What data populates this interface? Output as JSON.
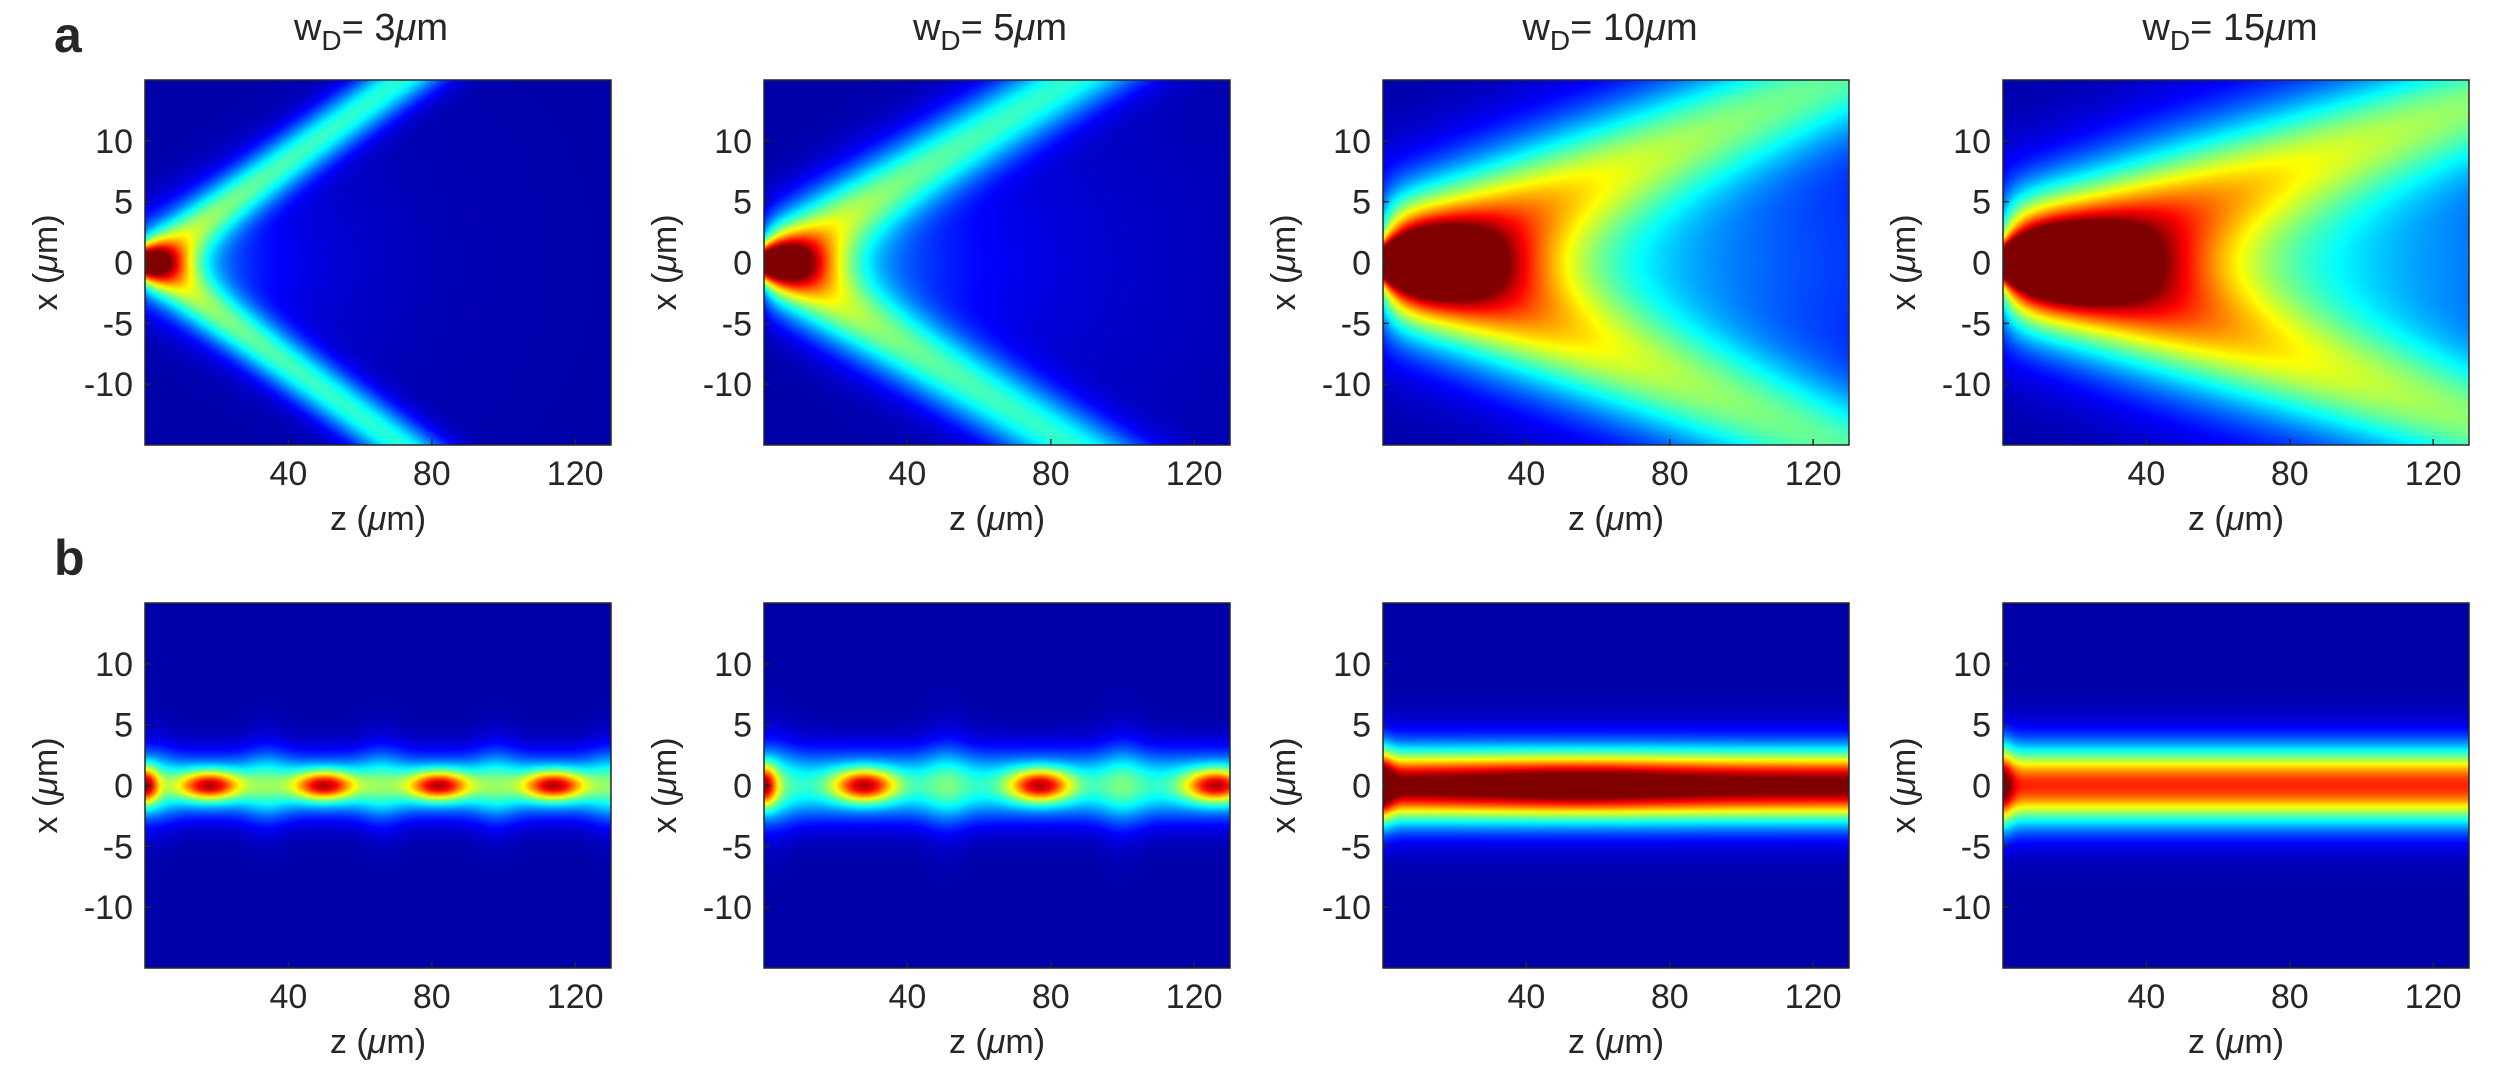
{
  "chart_data": {
    "type": "heatmap",
    "colormap": "jet",
    "panel_labels": [
      "a",
      "b"
    ],
    "xaxis": {
      "label_prefix": "z (",
      "label_unit_mu": "μ",
      "label_suffix": "m)",
      "range": [
        0,
        130
      ],
      "ticks": [
        40,
        80,
        120
      ],
      "tick_labels": [
        "40",
        "80",
        "120"
      ]
    },
    "yaxis": {
      "label_prefix": "x (",
      "label_unit_mu": "μ",
      "label_suffix": "m)",
      "range": [
        -15,
        15
      ],
      "ticks": [
        10,
        5,
        0,
        -5,
        -10
      ],
      "tick_labels": [
        "10",
        "5",
        "0",
        "-5",
        "-10"
      ]
    },
    "columns": [
      {
        "title_main": "w",
        "title_sub": "D",
        "title_rest": "= 3",
        "title_mu": "μ",
        "title_unit": "m",
        "wD_um": 3
      },
      {
        "title_main": "w",
        "title_sub": "D",
        "title_rest": "= 5",
        "title_mu": "μ",
        "title_unit": "m",
        "wD_um": 5
      },
      {
        "title_main": "w",
        "title_sub": "D",
        "title_rest": "= 10",
        "title_mu": "μ",
        "title_unit": "m",
        "wD_um": 10
      },
      {
        "title_main": "w",
        "title_sub": "D",
        "title_rest": "= 15",
        "title_mu": "μ",
        "title_unit": "m",
        "wD_um": 15
      }
    ],
    "rows": [
      {
        "label": "a",
        "panels": [
          {
            "kind": "diverging",
            "wD_um": 3,
            "beam_slope": 0.21,
            "beam_width_um": 1.8,
            "core_decay_um": 8
          },
          {
            "kind": "diverging",
            "wD_um": 5,
            "beam_slope": 0.175,
            "beam_width_um": 2.4,
            "core_decay_um": 12
          },
          {
            "kind": "diverging",
            "wD_um": 10,
            "beam_slope": 0.12,
            "beam_width_um": 3.5,
            "core_decay_um": 18
          },
          {
            "kind": "diverging",
            "wD_um": 15,
            "beam_slope": 0.1,
            "beam_width_um": 3.5,
            "core_decay_um": 20
          }
        ]
      },
      {
        "label": "b",
        "panels": [
          {
            "kind": "guided",
            "wD_um": 3,
            "guide_halfwidth_um": 1.5,
            "hotspot_z_um": [
              18,
              50,
              82,
              114
            ],
            "revival_period_um": 32
          },
          {
            "kind": "guided",
            "wD_um": 5,
            "guide_halfwidth_um": 1.7,
            "hotspot_z_um": [
              28,
              77,
              126
            ],
            "revival_period_um": 49
          },
          {
            "kind": "guided",
            "wD_um": 10,
            "guide_halfwidth_um": 2.2,
            "hotspot_z_um": [],
            "revival_period_um": 0
          },
          {
            "kind": "guided",
            "wD_um": 15,
            "guide_halfwidth_um": 2.2,
            "hotspot_z_um": [],
            "revival_period_um": 0
          }
        ]
      }
    ]
  }
}
